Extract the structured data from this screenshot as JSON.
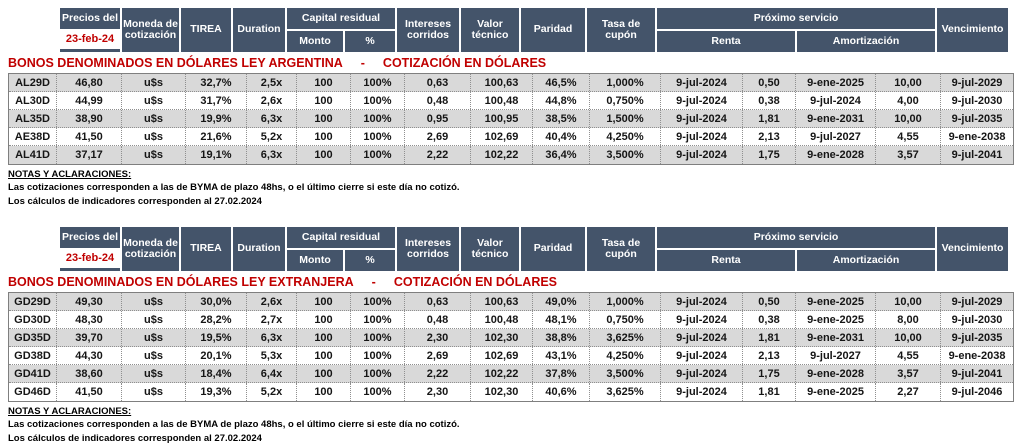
{
  "colors": {
    "header_bg": "#44546A",
    "accent_red": "#C00000",
    "row_shaded": "#D9D9D9",
    "row_plain": "#FFFFFF"
  },
  "columns": {
    "precios_del": "Precios del",
    "fecha": "23-feb-24",
    "moneda": "Moneda de cotización",
    "tirea": "TIREA",
    "duration": "Duration",
    "capital_residual": "Capital residual",
    "monto": "Monto",
    "pct": "%",
    "intereses": "Intereses corridos",
    "valor_tecnico": "Valor técnico",
    "paridad": "Paridad",
    "tasa_cupon": "Tasa de cupón",
    "proximo_servicio": "Próximo servicio",
    "renta": "Renta",
    "amortizacion": "Amortización",
    "vencimiento": "Vencimiento"
  },
  "tables": [
    {
      "title": "BONOS DENOMINADOS EN DÓLARES LEY ARGENTINA",
      "separator": "-",
      "subtitle": "COTIZACIÓN EN DÓLARES",
      "rows": [
        [
          "AL29D",
          "46,80",
          "u$s",
          "32,7%",
          "2,5x",
          "100",
          "100%",
          "0,63",
          "100,63",
          "46,5%",
          "1,000%",
          "9-jul-2024",
          "0,50",
          "9-ene-2025",
          "10,00",
          "9-jul-2029"
        ],
        [
          "AL30D",
          "44,99",
          "u$s",
          "31,7%",
          "2,6x",
          "100",
          "100%",
          "0,48",
          "100,48",
          "44,8%",
          "0,750%",
          "9-jul-2024",
          "0,38",
          "9-jul-2024",
          "4,00",
          "9-jul-2030"
        ],
        [
          "AL35D",
          "38,90",
          "u$s",
          "19,9%",
          "6,3x",
          "100",
          "100%",
          "0,95",
          "100,95",
          "38,5%",
          "1,500%",
          "9-jul-2024",
          "1,81",
          "9-ene-2031",
          "10,00",
          "9-jul-2035"
        ],
        [
          "AE38D",
          "41,50",
          "u$s",
          "21,6%",
          "5,2x",
          "100",
          "100%",
          "2,69",
          "102,69",
          "40,4%",
          "4,250%",
          "9-jul-2024",
          "2,13",
          "9-jul-2027",
          "4,55",
          "9-ene-2038"
        ],
        [
          "AL41D",
          "37,17",
          "u$s",
          "19,1%",
          "6,3x",
          "100",
          "100%",
          "2,22",
          "102,22",
          "36,4%",
          "3,500%",
          "9-jul-2024",
          "1,75",
          "9-ene-2028",
          "3,57",
          "9-jul-2041"
        ]
      ]
    },
    {
      "title": "BONOS DENOMINADOS EN DÓLARES LEY EXTRANJERA",
      "separator": "-",
      "subtitle": "COTIZACIÓN EN DÓLARES",
      "rows": [
        [
          "GD29D",
          "49,30",
          "u$s",
          "30,0%",
          "2,6x",
          "100",
          "100%",
          "0,63",
          "100,63",
          "49,0%",
          "1,000%",
          "9-jul-2024",
          "0,50",
          "9-ene-2025",
          "10,00",
          "9-jul-2029"
        ],
        [
          "GD30D",
          "48,30",
          "u$s",
          "28,2%",
          "2,7x",
          "100",
          "100%",
          "0,48",
          "100,48",
          "48,1%",
          "0,750%",
          "9-jul-2024",
          "0,38",
          "9-ene-2025",
          "8,00",
          "9-jul-2030"
        ],
        [
          "GD35D",
          "39,70",
          "u$s",
          "19,5%",
          "6,3x",
          "100",
          "100%",
          "2,30",
          "102,30",
          "38,8%",
          "3,625%",
          "9-jul-2024",
          "1,81",
          "9-ene-2031",
          "10,00",
          "9-jul-2035"
        ],
        [
          "GD38D",
          "44,30",
          "u$s",
          "20,1%",
          "5,3x",
          "100",
          "100%",
          "2,69",
          "102,69",
          "43,1%",
          "4,250%",
          "9-jul-2024",
          "2,13",
          "9-jul-2027",
          "4,55",
          "9-ene-2038"
        ],
        [
          "GD41D",
          "38,60",
          "u$s",
          "18,4%",
          "6,4x",
          "100",
          "100%",
          "2,22",
          "102,22",
          "37,8%",
          "3,500%",
          "9-jul-2024",
          "1,75",
          "9-ene-2028",
          "3,57",
          "9-jul-2041"
        ],
        [
          "GD46D",
          "41,50",
          "u$s",
          "19,3%",
          "5,2x",
          "100",
          "100%",
          "2,30",
          "102,30",
          "40,6%",
          "3,625%",
          "9-jul-2024",
          "1,81",
          "9-ene-2025",
          "2,27",
          "9-jul-2046"
        ]
      ]
    }
  ],
  "notes": {
    "heading": "NOTAS Y ACLARACIONES:",
    "line1": "Las cotizaciones corresponden a las de BYMA de plazo 48hs, o el último cierre si este día no cotizó.",
    "line2": "Los cálculos de indicadores corresponden al 27.02.2024"
  }
}
